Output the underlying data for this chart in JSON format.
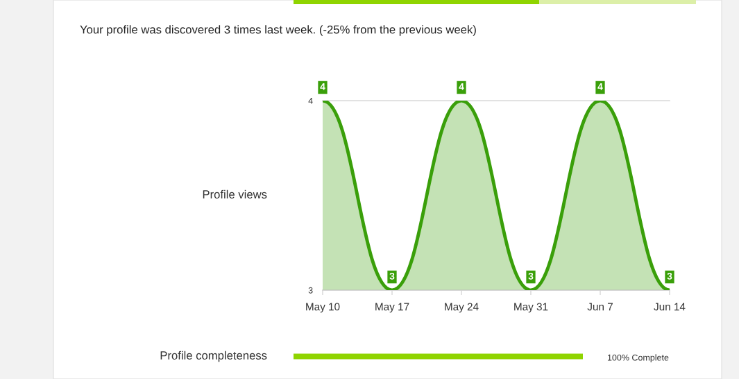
{
  "chart_data": [
    {
      "type": "area",
      "title": "Your profile was discovered 3 times last week. (-25% from the previous week)",
      "ylabel": "Profile views",
      "categories": [
        "May 10",
        "May 17",
        "May 24",
        "May 31",
        "Jun 7",
        "Jun 14"
      ],
      "series": [
        {
          "color": "#3a9f0a",
          "values": [
            4,
            3,
            4,
            3,
            4,
            3
          ]
        }
      ],
      "ylim": [
        3,
        4
      ],
      "yticks": [
        3,
        4
      ],
      "grid": "y",
      "data_labels": true
    },
    {
      "type": "other",
      "annotations": [
        "Profile completeness",
        "100% Complete"
      ]
    }
  ]
}
